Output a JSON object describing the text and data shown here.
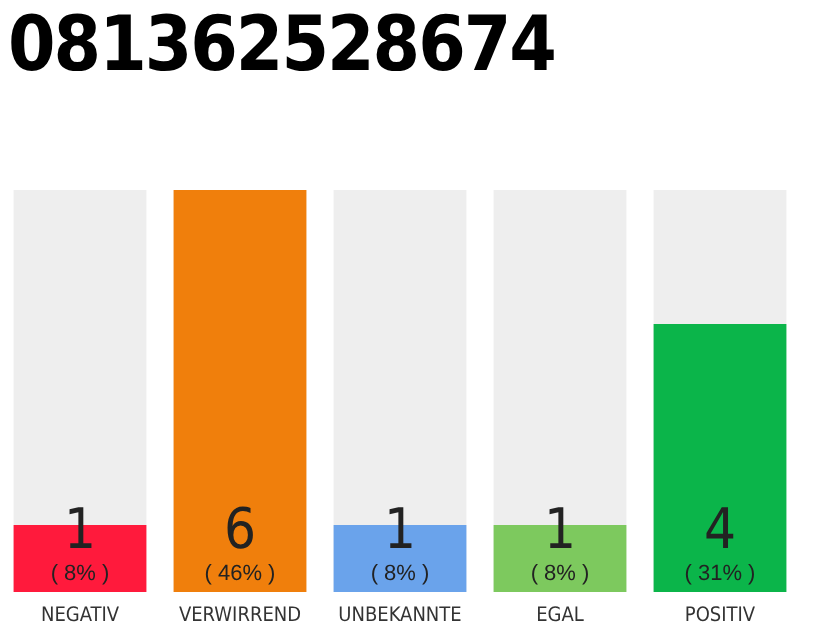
{
  "chart_data": {
    "type": "bar",
    "title": "081362528674",
    "categories": [
      "NEGATIV",
      "VERWIRREND",
      "UNBEKANNTE",
      "EGAL",
      "POSITIV"
    ],
    "values": [
      1,
      6,
      1,
      1,
      4
    ],
    "colors": [
      "#ff1a3c",
      "#f07f0c",
      "#6aa3eb",
      "#7dc95e",
      "#0bb54a"
    ],
    "ylim": [
      0,
      6
    ],
    "tick_labels": "x",
    "grid": false,
    "legend": false,
    "data_labels": true,
    "annotations": [
      "( 8% )",
      "( 46% )",
      "( 8% )",
      "( 8% )",
      "( 31% )"
    ]
  }
}
